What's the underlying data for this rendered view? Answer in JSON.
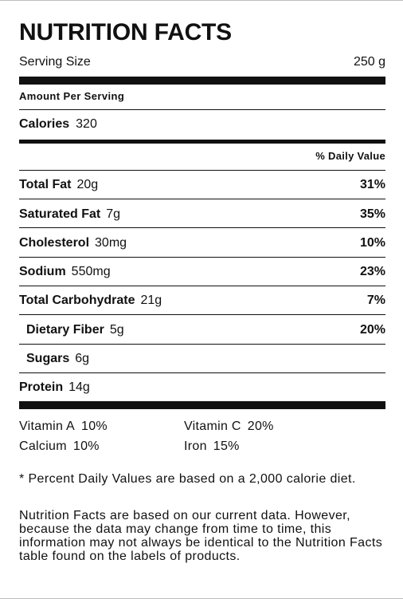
{
  "label": {
    "title": "NUTRITION FACTS",
    "serving_size_label": "Serving Size",
    "serving_size_value": "250 g",
    "amount_per_serving": "Amount Per Serving",
    "calories_label": "Calories",
    "calories_value": "320",
    "daily_value_header": "% Daily Value",
    "nutrients": [
      {
        "name": "Total Fat",
        "amount": "20g",
        "dv": "31%"
      },
      {
        "name": "Saturated Fat",
        "amount": "7g",
        "dv": "35%"
      },
      {
        "name": "Cholesterol",
        "amount": "30mg",
        "dv": "10%"
      },
      {
        "name": "Sodium",
        "amount": "550mg",
        "dv": "23%"
      },
      {
        "name": "Total Carbohydrate",
        "amount": "21g",
        "dv": "7%"
      },
      {
        "name": "Dietary Fiber",
        "amount": "5g",
        "dv": "20%"
      },
      {
        "name": "Sugars",
        "amount": "6g",
        "dv": ""
      },
      {
        "name": "Protein",
        "amount": "14g",
        "dv": ""
      }
    ],
    "vitamins": [
      {
        "name": "Vitamin A",
        "value": "10%"
      },
      {
        "name": "Vitamin C",
        "value": "20%"
      },
      {
        "name": "Calcium",
        "value": "10%"
      },
      {
        "name": "Iron",
        "value": "15%"
      }
    ],
    "footnote_dv": "* Percent Daily Values are based on a 2,000 calorie diet.",
    "footnote_disclaimer": "Nutrition Facts are based on our current data. However, because the data may change from time to time, this information may not always be identical to the Nutrition Facts table found on the labels of products."
  }
}
